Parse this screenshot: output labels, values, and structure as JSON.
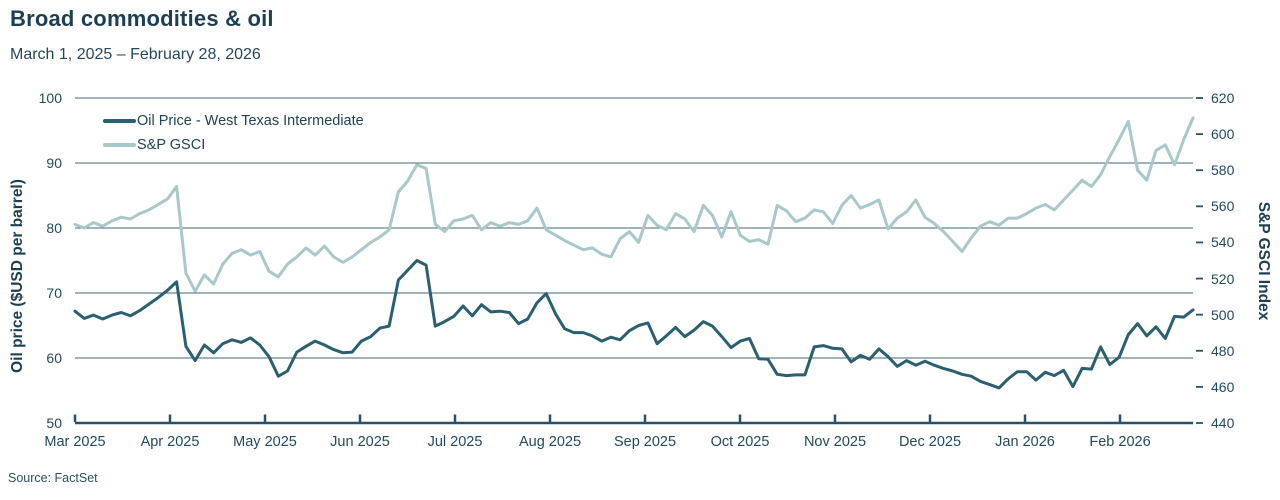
{
  "header": {
    "title": "Broad commodities & oil",
    "subtitle": "March 1, 2025 – February 28, 2026"
  },
  "source": "Source: FactSet",
  "colors": {
    "oil_series": "#2b5f72",
    "gsci_series": "#a9c8cc",
    "grid": "#42687b",
    "axis": "#27526b",
    "text": "#1d4154"
  },
  "chart_data": {
    "type": "line",
    "title": "Broad commodities & oil",
    "subtitle": "March 1, 2025 – February 28, 2026",
    "grid": "horizontal",
    "legend_position": "top-left",
    "x_unit": "samples every ~3 days, Mar 1 2025 - Feb 28 2026",
    "x_ticks": [
      "Mar 2025",
      "Apr 2025",
      "May 2025",
      "Jun 2025",
      "Jul 2025",
      "Aug 2025",
      "Sep 2025",
      "Oct 2025",
      "Nov 2025",
      "Dec 2025",
      "Jan 2026",
      "Feb 2026"
    ],
    "left_axis": {
      "label": "Oil price ($USD per barrel)",
      "min": 50,
      "max": 100,
      "ticks": [
        100,
        90,
        80,
        70,
        60,
        50
      ]
    },
    "right_axis": {
      "label": "S&P GSCI Index",
      "min": 440,
      "max": 620,
      "ticks": [
        620,
        600,
        580,
        560,
        540,
        520,
        500,
        480,
        460,
        440
      ]
    },
    "series": [
      {
        "name": "Oil Price - West Texas Intermediate",
        "axis": "left",
        "color": "#2b5f72",
        "values": [
          67.2,
          66.1,
          66.6,
          66.0,
          66.6,
          67.0,
          66.5,
          67.3,
          68.3,
          69.3,
          70.4,
          71.7,
          61.8,
          59.6,
          62.0,
          60.8,
          62.2,
          62.8,
          62.4,
          63.1,
          62.0,
          60.2,
          57.2,
          58.0,
          60.9,
          61.8,
          62.6,
          62.0,
          61.3,
          60.8,
          60.9,
          62.6,
          63.3,
          64.6,
          64.9,
          72.0,
          73.5,
          75.0,
          74.3,
          64.9,
          65.6,
          66.4,
          68.0,
          66.5,
          68.2,
          67.1,
          67.2,
          67.0,
          65.3,
          66.0,
          68.5,
          69.9,
          66.8,
          64.5,
          63.9,
          63.9,
          63.4,
          62.6,
          63.2,
          62.8,
          64.2,
          65.0,
          65.4,
          62.2,
          63.4,
          64.7,
          63.3,
          64.3,
          65.6,
          64.9,
          63.3,
          61.6,
          62.6,
          63.0,
          59.9,
          59.8,
          57.5,
          57.3,
          57.4,
          57.4,
          61.7,
          61.9,
          61.5,
          61.4,
          59.4,
          60.4,
          59.8,
          61.4,
          60.2,
          58.7,
          59.6,
          58.9,
          59.5,
          58.9,
          58.4,
          58.0,
          57.5,
          57.2,
          56.4,
          55.9,
          55.4,
          56.8,
          57.9,
          57.9,
          56.6,
          57.8,
          57.3,
          58.1,
          55.6,
          58.4,
          58.3,
          61.7,
          59.0,
          60.1,
          63.6,
          65.3,
          63.4,
          64.8,
          63.0,
          66.4,
          66.3,
          67.4
        ]
      },
      {
        "name": "S&P GSCI",
        "axis": "right",
        "color": "#a9c8cc",
        "values": [
          550,
          548,
          551,
          549,
          552,
          554,
          553,
          556,
          558,
          561,
          564,
          571,
          523,
          513,
          522,
          517,
          528,
          534,
          536,
          533,
          535,
          524,
          521,
          528,
          532,
          537,
          533,
          538,
          532,
          529,
          532,
          536,
          540,
          543,
          547,
          568,
          574,
          583,
          581,
          550,
          546,
          552,
          553,
          555,
          547,
          551,
          549,
          551,
          550,
          552,
          559,
          547,
          544,
          541,
          538.5,
          536,
          537,
          533.5,
          532,
          542,
          546,
          540,
          555,
          549.5,
          547,
          556,
          553,
          546,
          560.5,
          555,
          543,
          557,
          544,
          540.5,
          541.5,
          539,
          560.5,
          557.5,
          551.5,
          553.5,
          558,
          557,
          550.5,
          560.5,
          566,
          559,
          561,
          563.5,
          547.5,
          553.5,
          557,
          563.5,
          554,
          550.5,
          546,
          540.5,
          535,
          542.5,
          549,
          551.5,
          549.5,
          553.5,
          553.5,
          556,
          559,
          561,
          558,
          563.5,
          569,
          574.5,
          571,
          577.5,
          587.5,
          597,
          607,
          580,
          574.5,
          591,
          594,
          583,
          597,
          609
        ]
      }
    ]
  }
}
